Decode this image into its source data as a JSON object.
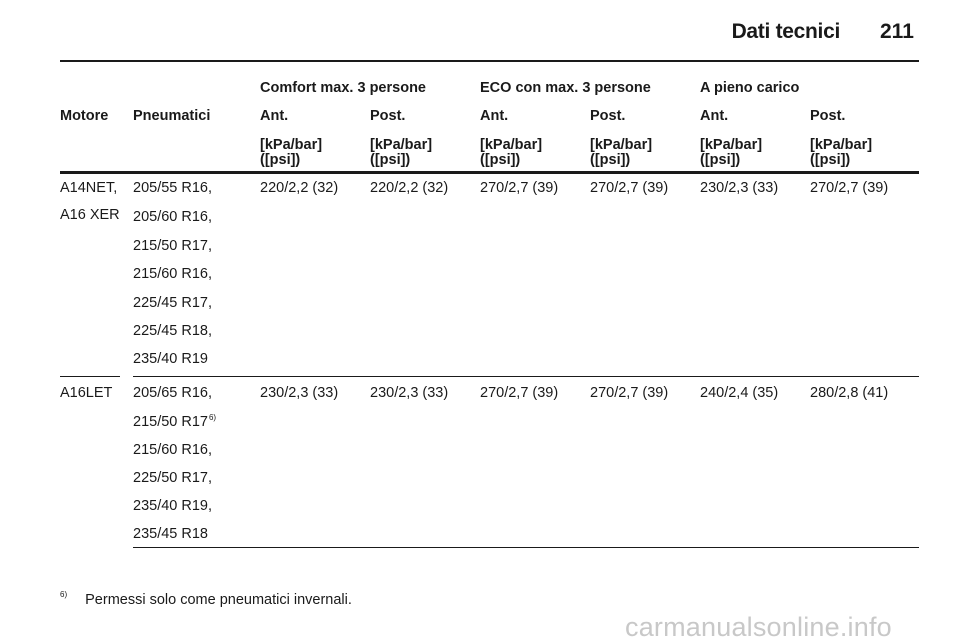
{
  "header": {
    "section": "Dati tecnici",
    "page_number": "211"
  },
  "table": {
    "group_headers": [
      "Comfort max. 3 persone",
      "ECO con max. 3 persone",
      "A pieno carico"
    ],
    "col_engine": "Motore",
    "col_tyres": "Pneumatici",
    "sub_headers": [
      "Ant.",
      "Post.",
      "Ant.",
      "Post.",
      "Ant.",
      "Post."
    ],
    "unit_line1": "[kPa/bar]",
    "unit_line2": "([psi])",
    "rows": [
      {
        "engine_line1": "A14NET,",
        "engine_line2": "A16 XER",
        "tyres": [
          "205/55 R16,",
          "205/60 R16,",
          "215/50 R17,",
          "215/60 R16,",
          "225/45 R17,",
          "225/45 R18,",
          "235/40 R19"
        ],
        "values": [
          "220/2,2 (32)",
          "220/2,2 (32)",
          "270/2,7 (39)",
          "270/2,7 (39)",
          "230/2,3 (33)",
          "270/2,7 (39)"
        ]
      },
      {
        "engine_line1": "A16LET",
        "tyres": [
          "205/65 R16,",
          "215/50 R17",
          "215/60 R16,",
          "225/50 R17,",
          "235/40 R19,",
          "235/45 R18"
        ],
        "tyre_footnote_ref": "6)",
        "values": [
          "230/2,3 (33)",
          "230/2,3 (33)",
          "270/2,7 (39)",
          "270/2,7 (39)",
          "240/2,4 (35)",
          "280/2,8 (41)"
        ]
      }
    ]
  },
  "footnote": {
    "marker": "6)",
    "text": "Permessi solo come pneumatici invernali."
  },
  "watermark": "carmanualsonline.info"
}
